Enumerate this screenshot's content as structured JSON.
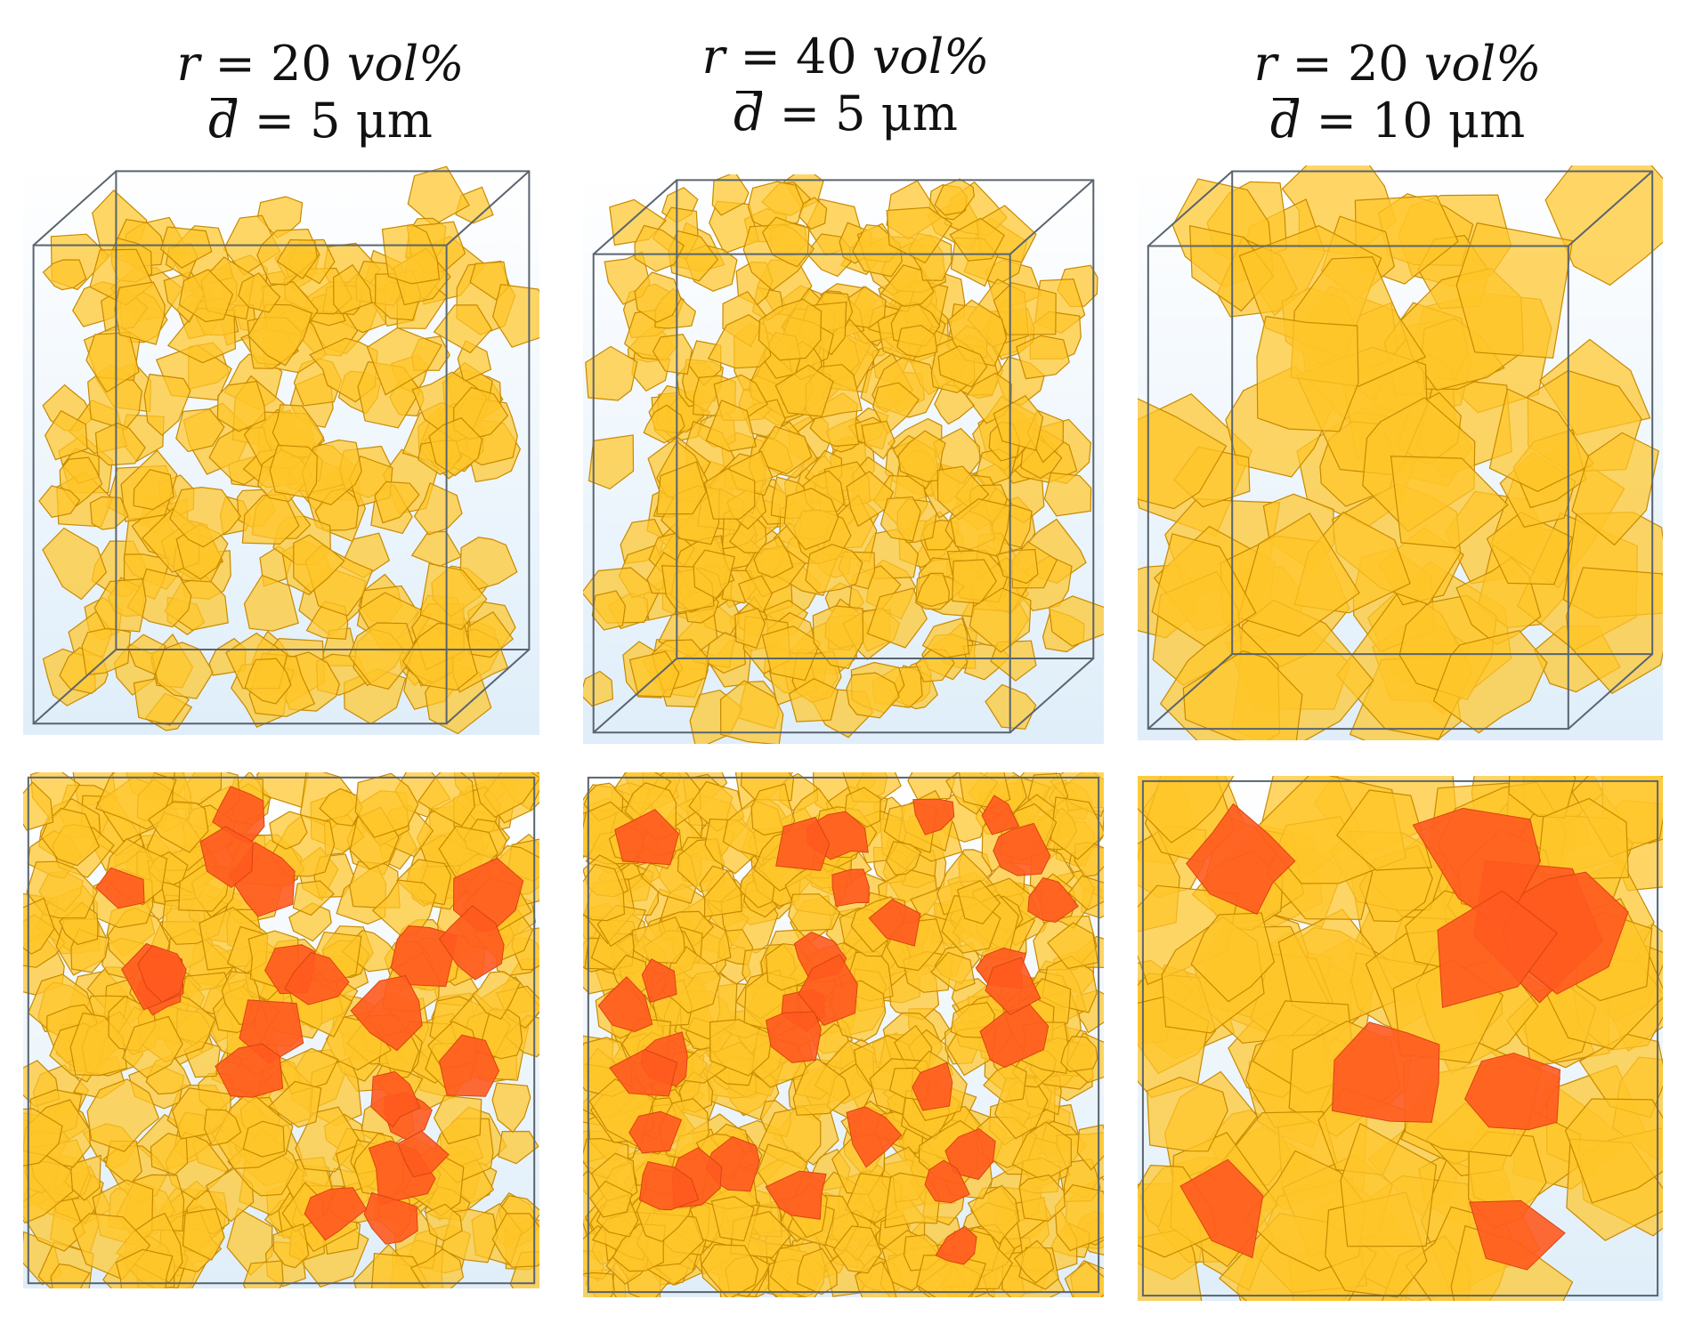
{
  "columns": [
    {
      "title_r_var": "r",
      "title_r_eq": " = 20 ",
      "title_r_unit": "vol%",
      "title_d_var": "d",
      "title_d_eq": " = 5 μm",
      "particle_count": 170,
      "highlight_count": 22,
      "particle_size": 34
    },
    {
      "title_r_var": "r",
      "title_r_eq": " = 40 ",
      "title_r_unit": "vol%",
      "title_d_var": "d",
      "title_d_eq": " = 5 μm",
      "particle_count": 260,
      "highlight_count": 30,
      "particle_size": 32
    },
    {
      "title_r_var": "r",
      "title_r_eq": " = 20 ",
      "title_r_unit": "vol%",
      "title_d_var": "d",
      "title_d_eq": " = 10 μm",
      "particle_count": 60,
      "highlight_count": 9,
      "particle_size": 68
    }
  ],
  "colors": {
    "particle_fill": "#ffc629",
    "particle_edge": "#c88a00",
    "highlight_fill": "#ff5a1f",
    "background_top": "#ffffff",
    "background_bottom": "#dfeefa",
    "box_edge": "#5a6470"
  }
}
